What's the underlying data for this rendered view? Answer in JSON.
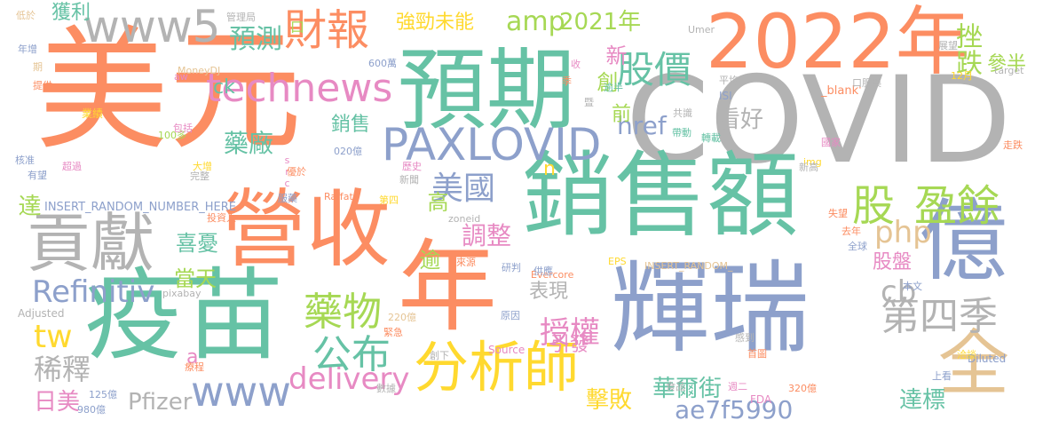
{
  "palette": {
    "orange": "#fc8d62",
    "teal": "#66c2a5",
    "gray": "#b3b3b3",
    "blue": "#8da0cb",
    "pink": "#e78ac3",
    "lime": "#a6d854",
    "yellow": "#ffd92f",
    "tan": "#e5c494"
  },
  "words": [
    {
      "text": "美元",
      "color": "#fc8d62"
    },
    {
      "text": "COVID",
      "color": "#b3b3b3"
    },
    {
      "text": "2022年",
      "color": "#fc8d62"
    },
    {
      "text": "預期",
      "color": "#66c2a5"
    },
    {
      "text": "銷售額",
      "color": "#66c2a5"
    },
    {
      "text": "輝瑞",
      "color": "#8da0cb"
    },
    {
      "text": "營收",
      "color": "#fc8d62"
    },
    {
      "text": "疫苗",
      "color": "#66c2a5"
    },
    {
      "text": "年",
      "color": "#fc8d62"
    },
    {
      "text": "億",
      "color": "#8da0cb"
    },
    {
      "text": "貢獻",
      "color": "#b3b3b3"
    },
    {
      "text": "PAXLOVID",
      "color": "#8da0cb"
    },
    {
      "text": "分析師",
      "color": "#ffd92f"
    },
    {
      "text": "全",
      "color": "#e5c494"
    },
    {
      "text": "technews",
      "color": "#e78ac3"
    },
    {
      "text": "www5",
      "color": "#b3b3b3"
    },
    {
      "text": "股價",
      "color": "#66c2a5"
    },
    {
      "text": "股",
      "color": "#a6d854"
    },
    {
      "text": "盈餘",
      "color": "#a6d854"
    },
    {
      "text": "財報",
      "color": "#fc8d62"
    },
    {
      "text": "amp",
      "color": "#a6d854"
    },
    {
      "text": "2021年",
      "color": "#a6d854"
    },
    {
      "text": "www",
      "color": "#8da0cb"
    },
    {
      "text": "delivery",
      "color": "#e78ac3"
    },
    {
      "text": "藥物",
      "color": "#a6d854"
    },
    {
      "text": "公布",
      "color": "#66c2a5"
    },
    {
      "text": "美國",
      "color": "#8da0cb"
    },
    {
      "text": "Refinitiv",
      "color": "#8da0cb"
    },
    {
      "text": "第四季",
      "color": "#b3b3b3"
    },
    {
      "text": "cb",
      "color": "#b3b3b3"
    },
    {
      "text": "php",
      "color": "#e5c494"
    },
    {
      "text": "授權",
      "color": "#e78ac3"
    },
    {
      "text": "ae7f5990",
      "color": "#8da0cb"
    },
    {
      "text": "稀釋",
      "color": "#b3b3b3"
    },
    {
      "text": "tw",
      "color": "#ffd92f"
    },
    {
      "text": "Pfizer",
      "color": "#b3b3b3"
    },
    {
      "text": "華爾街",
      "color": "#66c2a5"
    },
    {
      "text": "達標",
      "color": "#66c2a5"
    },
    {
      "text": "擊敗",
      "color": "#ffd92f"
    },
    {
      "text": "看好",
      "color": "#b3b3b3"
    },
    {
      "text": "href",
      "color": "#8da0cb"
    },
    {
      "text": "預測",
      "color": "#66c2a5"
    },
    {
      "text": "強勁未能",
      "color": "#ffd92f"
    },
    {
      "text": "獲利",
      "color": "#66c2a5"
    },
    {
      "text": "挫跌",
      "color": "#a6d854"
    },
    {
      "text": "參半",
      "color": "#a6d854"
    },
    {
      "text": "調整",
      "color": "#e78ac3"
    },
    {
      "text": "藥廠",
      "color": "#66c2a5"
    },
    {
      "text": "銷售",
      "color": "#66c2a5"
    },
    {
      "text": "喜憂",
      "color": "#66c2a5"
    },
    {
      "text": "當天",
      "color": "#a6d854"
    },
    {
      "text": "表現",
      "color": "#b3b3b3"
    },
    {
      "text": "引發",
      "color": "#e78ac3"
    },
    {
      "text": "股盤",
      "color": "#e78ac3"
    },
    {
      "text": "日美",
      "color": "#e78ac3"
    },
    {
      "text": "新",
      "color": "#e78ac3"
    },
    {
      "text": "創",
      "color": "#a6d854"
    },
    {
      "text": "前",
      "color": "#a6d854"
    },
    {
      "text": "高",
      "color": "#a6d854"
    },
    {
      "text": "逾",
      "color": "#a6d854"
    },
    {
      "text": "達",
      "color": "#a6d854"
    },
    {
      "text": "ck",
      "color": "#66c2a5"
    },
    {
      "text": "n",
      "color": "#ffd92f"
    },
    {
      "text": "a",
      "color": "#e78ac3"
    },
    {
      "text": "口",
      "color": "#a6d854"
    },
    {
      "text": "管理局",
      "color": "#b3b3b3"
    },
    {
      "text": "MoneyDJ",
      "color": "#e5c494"
    },
    {
      "text": "INSERT_RANDOM_NUMBER_HERE",
      "color": "#8da0cb"
    },
    {
      "text": "INSERT_RANDOM_",
      "color": "#e5c494"
    },
    {
      "text": "Evercore",
      "color": "#fc8d62"
    },
    {
      "text": "Raffat",
      "color": "#fc8d62"
    },
    {
      "text": "Source",
      "color": "#e78ac3"
    },
    {
      "text": "Diluted",
      "color": "#8da0cb"
    },
    {
      "text": "Adjusted",
      "color": "#b3b3b3"
    },
    {
      "text": "pixabay",
      "color": "#b3b3b3"
    },
    {
      "text": "zoneid",
      "color": "#b3b3b3"
    },
    {
      "text": "_blank'",
      "color": "#fc8d62"
    },
    {
      "text": "target",
      "color": "#b3b3b3"
    },
    {
      "text": "Umer",
      "color": "#b3b3b3"
    },
    {
      "text": "ISI",
      "color": "#8da0cb"
    },
    {
      "text": "FDA",
      "color": "#e78ac3"
    },
    {
      "text": "EPS",
      "color": "#ffd92f"
    },
    {
      "text": "img",
      "color": "#ffd92f"
    },
    {
      "text": "src",
      "color": "#e78ac3"
    },
    {
      "text": "aw",
      "color": "#e78ac3"
    },
    {
      "text": "600萬",
      "color": "#8da0cb"
    },
    {
      "text": "020億",
      "color": "#8da0cb"
    },
    {
      "text": "220億",
      "color": "#e5c494"
    },
    {
      "text": "320億",
      "color": "#fc8d62"
    },
    {
      "text": "125億",
      "color": "#8da0cb"
    },
    {
      "text": "980億",
      "color": "#8da0cb"
    },
    {
      "text": "100多",
      "color": "#a6d854"
    },
    {
      "text": "12月",
      "color": "#ffd92f"
    },
    {
      "text": "低於",
      "color": "#e5c494"
    },
    {
      "text": "年增",
      "color": "#8da0cb"
    },
    {
      "text": "期",
      "color": "#e5c494"
    },
    {
      "text": "提供",
      "color": "#fc8d62"
    },
    {
      "text": "業績",
      "color": "#ffd92f"
    },
    {
      "text": "核准",
      "color": "#8da0cb"
    },
    {
      "text": "有望",
      "color": "#8da0cb"
    },
    {
      "text": "超過",
      "color": "#e78ac3"
    },
    {
      "text": "包括",
      "color": "#e78ac3"
    },
    {
      "text": "大增",
      "color": "#ffd92f"
    },
    {
      "text": "完整",
      "color": "#b3b3b3"
    },
    {
      "text": "優於",
      "color": "#fc8d62"
    },
    {
      "text": "投資人",
      "color": "#fc8d62"
    },
    {
      "text": "歷史",
      "color": "#e78ac3"
    },
    {
      "text": "新聞",
      "color": "#b3b3b3"
    },
    {
      "text": "第四",
      "color": "#ffd92f"
    },
    {
      "text": "服藥",
      "color": "#8da0cb"
    },
    {
      "text": "來源",
      "color": "#fc8d62"
    },
    {
      "text": "研判",
      "color": "#8da0cb"
    },
    {
      "text": "供應",
      "color": "#8da0cb"
    },
    {
      "text": "原因",
      "color": "#8da0cb"
    },
    {
      "text": "緊急",
      "color": "#fc8d62"
    },
    {
      "text": "創下",
      "color": "#b3b3b3"
    },
    {
      "text": "數據",
      "color": "#b3b3b3"
    },
    {
      "text": "療程",
      "color": "#fc8d62"
    },
    {
      "text": "食品",
      "color": "#b3b3b3"
    },
    {
      "text": "週二",
      "color": "#e78ac3"
    },
    {
      "text": "首圖",
      "color": "#fc8d62"
    },
    {
      "text": "感到",
      "color": "#b3b3b3"
    },
    {
      "text": "上看",
      "color": "#8da0cb"
    },
    {
      "text": "洽談",
      "color": "#ffd92f"
    },
    {
      "text": "本文",
      "color": "#8da0cb"
    },
    {
      "text": "全球",
      "color": "#8da0cb"
    },
    {
      "text": "去年",
      "color": "#fc8d62"
    },
    {
      "text": "失望",
      "color": "#fc8d62"
    },
    {
      "text": "新高",
      "color": "#b3b3b3"
    },
    {
      "text": "國家",
      "color": "#e78ac3"
    },
    {
      "text": "走跌",
      "color": "#fc8d62"
    },
    {
      "text": "帶動",
      "color": "#66c2a5"
    },
    {
      "text": "轉載",
      "color": "#66c2a5"
    },
    {
      "text": "共識",
      "color": "#b3b3b3"
    },
    {
      "text": "暨",
      "color": "#b3b3b3"
    },
    {
      "text": "逾半",
      "color": "#66c2a5"
    },
    {
      "text": "平均",
      "color": "#b3b3b3"
    },
    {
      "text": "季",
      "color": "#fc8d62"
    },
    {
      "text": "收",
      "color": "#e78ac3"
    },
    {
      "text": "展望",
      "color": "#b3b3b3"
    },
    {
      "text": "口服藥",
      "color": "#b3b3b3"
    }
  ]
}
